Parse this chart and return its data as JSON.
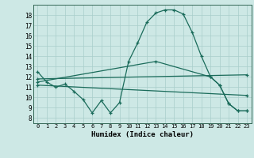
{
  "xlabel": "Humidex (Indice chaleur)",
  "background_color": "#cde8e5",
  "grid_color": "#a8ceca",
  "line_color": "#1a6b5a",
  "xlim": [
    -0.5,
    23.5
  ],
  "ylim": [
    7.5,
    19.0
  ],
  "yticks": [
    8,
    9,
    10,
    11,
    12,
    13,
    14,
    15,
    16,
    17,
    18
  ],
  "xticks": [
    0,
    1,
    2,
    3,
    4,
    5,
    6,
    7,
    8,
    9,
    10,
    11,
    12,
    13,
    14,
    15,
    16,
    17,
    18,
    19,
    20,
    21,
    22,
    23
  ],
  "curve1_x": [
    0,
    1,
    2,
    3,
    4,
    5,
    6,
    7,
    8,
    9,
    10,
    11,
    12,
    13,
    14,
    15,
    16,
    17,
    18,
    19,
    20,
    21,
    22,
    23
  ],
  "curve1_y": [
    12.5,
    11.5,
    11.0,
    11.3,
    10.6,
    9.8,
    8.5,
    9.7,
    8.5,
    9.5,
    13.5,
    15.3,
    17.3,
    18.2,
    18.5,
    18.5,
    18.1,
    16.3,
    14.0,
    12.0,
    11.2,
    9.4,
    8.7,
    8.7
  ],
  "curve2_x": [
    0,
    23
  ],
  "curve2_y": [
    11.8,
    12.2
  ],
  "curve3_x": [
    0,
    13,
    19,
    20,
    21,
    22,
    23
  ],
  "curve3_y": [
    11.5,
    13.5,
    12.0,
    11.2,
    9.4,
    8.7,
    8.7
  ],
  "curve4_x": [
    0,
    23
  ],
  "curve4_y": [
    11.2,
    10.2
  ],
  "marker": "+"
}
